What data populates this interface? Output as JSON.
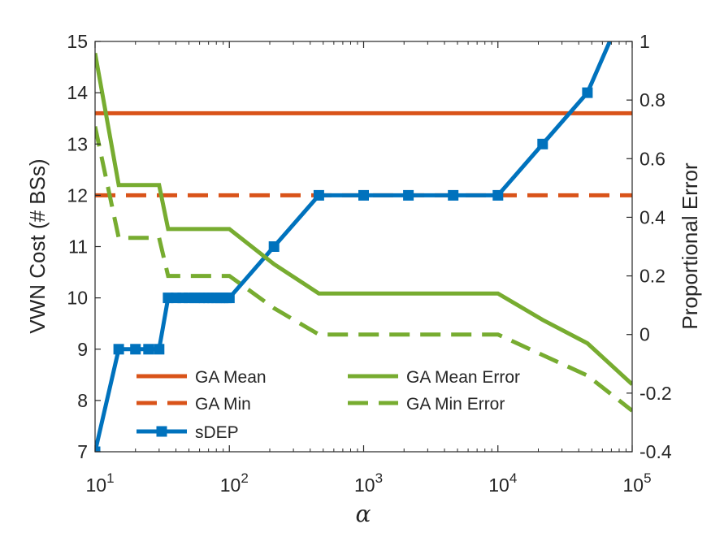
{
  "chart_data": {
    "type": "line",
    "xlabel": "α",
    "xscale": "log",
    "xlim": [
      10,
      100000
    ],
    "x_ticks": [
      {
        "value": 10,
        "base": "10",
        "exp": "1"
      },
      {
        "value": 100,
        "base": "10",
        "exp": "2"
      },
      {
        "value": 1000,
        "base": "10",
        "exp": "3"
      },
      {
        "value": 10000,
        "base": "10",
        "exp": "4"
      },
      {
        "value": 100000,
        "base": "10",
        "exp": "5"
      }
    ],
    "ylabel_left": "VWN Cost (# BSs)",
    "ylim_left": [
      7,
      15
    ],
    "y_ticks_left": [
      "7",
      "8",
      "9",
      "10",
      "11",
      "12",
      "13",
      "14",
      "15"
    ],
    "ylabel_right": "Proportional Error",
    "ylim_right": [
      -0.4,
      1
    ],
    "y_ticks_right": [
      "-0.4",
      "-0.2",
      "0",
      "0.2",
      "0.4",
      "0.6",
      "0.8",
      "1"
    ],
    "grid": false,
    "legend_position": "bottom-left",
    "series": [
      {
        "name": "GA Mean",
        "axis": "left",
        "color": "#D95319",
        "style": "solid",
        "marker": "none",
        "x": [
          10,
          100000
        ],
        "y": [
          13.6,
          13.6
        ]
      },
      {
        "name": "GA Min",
        "axis": "left",
        "color": "#D95319",
        "style": "dashed",
        "marker": "none",
        "x": [
          10,
          100000
        ],
        "y": [
          12,
          12
        ]
      },
      {
        "name": "sDEP",
        "axis": "left",
        "color": "#0072BD",
        "style": "solid",
        "marker": "square",
        "x": [
          10,
          15,
          20,
          25,
          30,
          35,
          40,
          45,
          50,
          55,
          60,
          65,
          70,
          75,
          80,
          85,
          90,
          95,
          100,
          215,
          464,
          1000,
          2154,
          4642,
          10000,
          21544,
          46416,
          100000
        ],
        "y": [
          7,
          9,
          9,
          9,
          9,
          10,
          10,
          10,
          10,
          10,
          10,
          10,
          10,
          10,
          10,
          10,
          10,
          10,
          10,
          11,
          12,
          12,
          12,
          12,
          12,
          13,
          14,
          16
        ]
      },
      {
        "name": "GA Mean Error",
        "axis": "right",
        "color": "#77AC30",
        "style": "solid",
        "marker": "none",
        "x": [
          10,
          15,
          20,
          25,
          30,
          35,
          40,
          60,
          100,
          215,
          464,
          1000,
          2154,
          4642,
          10000,
          21544,
          46416,
          100000
        ],
        "y": [
          0.96,
          0.51,
          0.51,
          0.51,
          0.51,
          0.36,
          0.36,
          0.36,
          0.36,
          0.24,
          0.14,
          0.14,
          0.14,
          0.14,
          0.14,
          0.05,
          -0.03,
          -0.17
        ]
      },
      {
        "name": "GA Min Error",
        "axis": "right",
        "color": "#77AC30",
        "style": "dashed",
        "marker": "none",
        "x": [
          10,
          15,
          20,
          25,
          30,
          35,
          40,
          60,
          100,
          215,
          464,
          1000,
          2154,
          4642,
          10000,
          21544,
          46416,
          100000
        ],
        "y": [
          0.71,
          0.33,
          0.33,
          0.33,
          0.33,
          0.2,
          0.2,
          0.2,
          0.2,
          0.09,
          0.0,
          0.0,
          0.0,
          0.0,
          0.0,
          -0.07,
          -0.14,
          -0.26
        ]
      }
    ],
    "legend_columns": [
      [
        "GA Mean",
        "GA Min",
        "sDEP"
      ],
      [
        "GA Mean Error",
        "GA Min Error"
      ]
    ]
  }
}
